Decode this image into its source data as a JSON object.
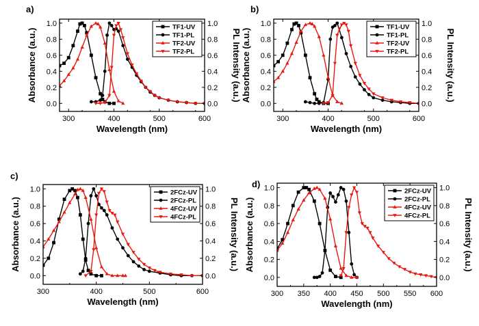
{
  "chart_data": [
    {
      "type": "line",
      "panel_label": "a)",
      "xlabel": "Wavelength (nm)",
      "ylabel": "Absorbance (a.u.)",
      "y2label": "PL Intensity (a.u.)",
      "xlim": [
        280,
        600
      ],
      "ylim": [
        -0.1,
        1.05
      ],
      "xticks": [
        "300",
        "400",
        "500",
        "600"
      ],
      "xtick_values": [
        300,
        400,
        500,
        600
      ],
      "yticks": [
        "0.0",
        "0.2",
        "0.4",
        "0.6",
        "0.8",
        "1.0"
      ],
      "ytick_values": [
        0,
        0.2,
        0.4,
        0.6,
        0.8,
        1.0
      ],
      "legend_position": "top-right",
      "series": [
        {
          "name": "TF1-UV",
          "color": "#000000",
          "marker": "square",
          "x": [
            280,
            290,
            300,
            310,
            320,
            325,
            330,
            335,
            340,
            350,
            360,
            370,
            375,
            380,
            390,
            400
          ],
          "y": [
            0.47,
            0.5,
            0.57,
            0.72,
            0.9,
            0.99,
            1.0,
            0.97,
            0.88,
            0.6,
            0.32,
            0.12,
            0.05,
            0.02,
            0.0,
            0.0
          ]
        },
        {
          "name": "TF1-PL",
          "color": "#000000",
          "marker": "circle",
          "x": [
            350,
            360,
            370,
            375,
            380,
            385,
            390,
            395,
            400,
            405,
            410,
            420,
            430,
            440,
            450,
            460,
            470,
            480,
            490,
            500,
            520,
            540,
            560,
            580,
            600
          ],
          "y": [
            0.02,
            0.02,
            0.04,
            0.1,
            0.4,
            0.85,
            1.0,
            0.97,
            0.92,
            0.93,
            0.9,
            0.72,
            0.55,
            0.45,
            0.35,
            0.27,
            0.2,
            0.14,
            0.1,
            0.07,
            0.04,
            0.02,
            0.01,
            0.0,
            0.0
          ]
        },
        {
          "name": "TF2-UV",
          "color": "#e8180f",
          "marker": "triangle-up",
          "x": [
            280,
            290,
            300,
            310,
            320,
            330,
            340,
            350,
            360,
            365,
            370,
            380,
            390,
            400,
            410,
            420
          ],
          "y": [
            0.22,
            0.28,
            0.36,
            0.44,
            0.55,
            0.7,
            0.85,
            0.96,
            1.0,
            0.99,
            0.95,
            0.75,
            0.42,
            0.15,
            0.03,
            0.0
          ]
        },
        {
          "name": "TF2-PL",
          "color": "#e8180f",
          "marker": "triangle-down",
          "x": [
            360,
            370,
            380,
            390,
            395,
            400,
            405,
            410,
            415,
            420,
            430,
            440,
            450,
            460,
            470,
            480,
            490,
            500,
            520,
            540,
            560,
            580,
            600
          ],
          "y": [
            0.0,
            0.0,
            0.01,
            0.1,
            0.45,
            0.85,
            0.97,
            1.0,
            0.92,
            0.82,
            0.62,
            0.48,
            0.37,
            0.28,
            0.2,
            0.15,
            0.1,
            0.07,
            0.04,
            0.02,
            0.01,
            0.0,
            0.0
          ]
        }
      ]
    },
    {
      "type": "line",
      "panel_label": "b)",
      "xlabel": "Wavelength (nm)",
      "ylabel": "Absorbance (a.u.)",
      "y2label": "PL Intensity (a.u.)",
      "xlim": [
        280,
        600
      ],
      "ylim": [
        -0.1,
        1.05
      ],
      "xticks": [
        "300",
        "400",
        "500",
        "600"
      ],
      "xtick_values": [
        300,
        400,
        500,
        600
      ],
      "yticks": [
        "0.0",
        "0.2",
        "0.4",
        "0.6",
        "0.8",
        "1.0"
      ],
      "ytick_values": [
        0,
        0.2,
        0.4,
        0.6,
        0.8,
        1.0
      ],
      "legend_position": "top-right",
      "series": [
        {
          "name": "TF1-UV",
          "color": "#000000",
          "marker": "square",
          "x": [
            280,
            290,
            300,
            310,
            320,
            325,
            330,
            335,
            340,
            350,
            360,
            370,
            375,
            380,
            390,
            400
          ],
          "y": [
            0.47,
            0.52,
            0.6,
            0.75,
            0.92,
            0.99,
            1.0,
            0.97,
            0.88,
            0.6,
            0.32,
            0.12,
            0.05,
            0.02,
            0.0,
            0.0
          ]
        },
        {
          "name": "TF1-PL",
          "color": "#000000",
          "marker": "circle",
          "x": [
            350,
            360,
            370,
            380,
            390,
            400,
            405,
            410,
            415,
            420,
            430,
            440,
            450,
            460,
            470,
            480,
            490,
            500,
            520,
            540,
            560,
            580,
            600
          ],
          "y": [
            0.02,
            0.01,
            0.0,
            0.0,
            0.01,
            0.3,
            0.8,
            0.95,
            0.97,
            1.0,
            0.82,
            0.62,
            0.46,
            0.33,
            0.24,
            0.17,
            0.11,
            0.07,
            0.04,
            0.02,
            0.01,
            0.0,
            0.0
          ]
        },
        {
          "name": "TF2-UV",
          "color": "#e8180f",
          "marker": "triangle-up",
          "x": [
            280,
            290,
            300,
            310,
            320,
            330,
            340,
            350,
            360,
            365,
            370,
            380,
            390,
            400,
            410,
            420,
            430
          ],
          "y": [
            0.27,
            0.32,
            0.4,
            0.5,
            0.62,
            0.76,
            0.9,
            0.98,
            1.0,
            0.99,
            0.96,
            0.83,
            0.6,
            0.32,
            0.1,
            0.02,
            0.0
          ]
        },
        {
          "name": "TF2-PL",
          "color": "#e8180f",
          "marker": "triangle-down",
          "x": [
            390,
            400,
            410,
            415,
            420,
            425,
            430,
            435,
            440,
            445,
            450,
            460,
            470,
            480,
            490,
            500,
            520,
            540,
            560,
            580,
            600
          ],
          "y": [
            0.0,
            0.01,
            0.1,
            0.5,
            0.85,
            0.93,
            0.98,
            1.0,
            0.98,
            0.9,
            0.72,
            0.5,
            0.35,
            0.25,
            0.18,
            0.12,
            0.07,
            0.04,
            0.02,
            0.01,
            0.0
          ]
        }
      ]
    },
    {
      "type": "line",
      "panel_label": "c)",
      "xlabel": "Wavelength (nm)",
      "ylabel": "Absorbance (a.u.)",
      "y2label": "PL Intensity (a.u.)",
      "xlim": [
        300,
        600
      ],
      "ylim": [
        -0.1,
        1.05
      ],
      "xticks": [
        "300",
        "400",
        "500",
        "600"
      ],
      "xtick_values": [
        300,
        400,
        500,
        600
      ],
      "yticks": [
        "0.0",
        "0.2",
        "0.4",
        "0.6",
        "0.8",
        "1.0"
      ],
      "ytick_values": [
        0,
        0.2,
        0.4,
        0.6,
        0.8,
        1.0
      ],
      "legend_position": "top-right",
      "series": [
        {
          "name": "2FCz-UV",
          "color": "#000000",
          "marker": "square",
          "x": [
            300,
            310,
            320,
            330,
            340,
            350,
            355,
            360,
            365,
            370,
            375,
            380,
            385,
            390,
            400,
            410
          ],
          "y": [
            0.12,
            0.2,
            0.38,
            0.65,
            0.88,
            0.98,
            1.0,
            0.98,
            0.9,
            0.7,
            0.42,
            0.18,
            0.06,
            0.02,
            0.0,
            0.0
          ]
        },
        {
          "name": "2FCz-PL",
          "color": "#000000",
          "marker": "circle",
          "x": [
            370,
            375,
            380,
            385,
            390,
            395,
            400,
            405,
            410,
            415,
            420,
            430,
            440,
            450,
            460,
            470,
            480,
            490,
            500,
            520,
            540,
            560,
            580,
            600
          ],
          "y": [
            0.02,
            0.05,
            0.2,
            0.6,
            0.92,
            1.0,
            0.92,
            0.82,
            0.78,
            0.75,
            0.7,
            0.55,
            0.42,
            0.32,
            0.23,
            0.16,
            0.11,
            0.07,
            0.05,
            0.03,
            0.01,
            0.0,
            0.0,
            0.0
          ]
        },
        {
          "name": "4FCz-UV",
          "color": "#e8180f",
          "marker": "triangle-up",
          "x": [
            300,
            310,
            320,
            330,
            340,
            350,
            360,
            365,
            370,
            375,
            380,
            390,
            400,
            410,
            420,
            430,
            440,
            450,
            455
          ],
          "y": [
            0.33,
            0.42,
            0.52,
            0.62,
            0.73,
            0.84,
            0.94,
            0.99,
            1.0,
            0.98,
            0.9,
            0.65,
            0.32,
            0.1,
            0.02,
            0.0,
            0.0,
            0.0,
            0.0
          ]
        },
        {
          "name": "4FCz-PL",
          "color": "#e8180f",
          "marker": "triangle-down",
          "x": [
            380,
            390,
            395,
            400,
            405,
            410,
            415,
            420,
            425,
            430,
            435,
            440,
            450,
            460,
            470,
            480,
            490,
            500,
            510,
            520,
            540,
            560,
            580,
            600
          ],
          "y": [
            0.0,
            0.05,
            0.3,
            0.7,
            0.95,
            1.0,
            0.97,
            0.85,
            0.75,
            0.72,
            0.7,
            0.62,
            0.48,
            0.36,
            0.27,
            0.19,
            0.13,
            0.09,
            0.06,
            0.04,
            0.02,
            0.01,
            0.0,
            0.0
          ]
        }
      ]
    },
    {
      "type": "line",
      "panel_label": "d)",
      "xlabel": "Wavelength (nm)",
      "ylabel": "Absorbance (a.u.)",
      "y2label": "PL Intensity (a.u.)",
      "xlim": [
        300,
        600
      ],
      "ylim": [
        -0.1,
        1.05
      ],
      "xticks": [
        "300",
        "350",
        "400",
        "450",
        "500",
        "550",
        "600"
      ],
      "xtick_values": [
        300,
        350,
        400,
        450,
        500,
        550,
        600
      ],
      "yticks": [
        "0.0",
        "0.2",
        "0.4",
        "0.6",
        "0.8",
        "1.0"
      ],
      "ytick_values": [
        0,
        0.2,
        0.4,
        0.6,
        0.8,
        1.0
      ],
      "legend_position": "top-right",
      "series": [
        {
          "name": "2FCz-UV",
          "color": "#000000",
          "marker": "square",
          "x": [
            300,
            310,
            320,
            330,
            340,
            350,
            355,
            360,
            370,
            380,
            390,
            400,
            410,
            420
          ],
          "y": [
            0.32,
            0.42,
            0.6,
            0.8,
            0.95,
            1.0,
            1.0,
            0.98,
            0.85,
            0.6,
            0.3,
            0.08,
            0.01,
            0.0
          ]
        },
        {
          "name": "2FCz-PL",
          "color": "#000000",
          "marker": "circle",
          "x": [
            370,
            375,
            380,
            385,
            390,
            395,
            400,
            405,
            410,
            415,
            420,
            425,
            430,
            435,
            440,
            445,
            450
          ],
          "y": [
            0.0,
            0.0,
            0.01,
            0.05,
            0.3,
            0.78,
            0.94,
            0.9,
            0.84,
            0.92,
            1.0,
            0.98,
            0.85,
            0.5,
            0.15,
            0.03,
            0.0
          ]
        },
        {
          "name": "4FCz-UV",
          "color": "#e8180f",
          "marker": "triangle-up",
          "x": [
            300,
            310,
            320,
            330,
            340,
            350,
            360,
            370,
            375,
            380,
            390,
            400,
            410,
            420,
            430,
            440,
            450
          ],
          "y": [
            0.3,
            0.38,
            0.5,
            0.64,
            0.76,
            0.86,
            0.94,
            0.99,
            1.0,
            0.98,
            0.88,
            0.65,
            0.35,
            0.1,
            0.02,
            0.0,
            0.0
          ]
        },
        {
          "name": "4FCz-PL",
          "color": "#e8180f",
          "marker": "triangle-down",
          "x": [
            420,
            425,
            430,
            435,
            440,
            445,
            450,
            455,
            460,
            465,
            470,
            475,
            480,
            490,
            500,
            510,
            520,
            530,
            540,
            550,
            560,
            570,
            580,
            590,
            600
          ],
          "y": [
            0.02,
            0.1,
            0.5,
            0.78,
            0.92,
            1.0,
            0.95,
            0.72,
            0.6,
            0.57,
            0.55,
            0.5,
            0.44,
            0.35,
            0.28,
            0.21,
            0.16,
            0.12,
            0.09,
            0.06,
            0.04,
            0.03,
            0.02,
            0.01,
            0.0
          ]
        }
      ]
    }
  ]
}
